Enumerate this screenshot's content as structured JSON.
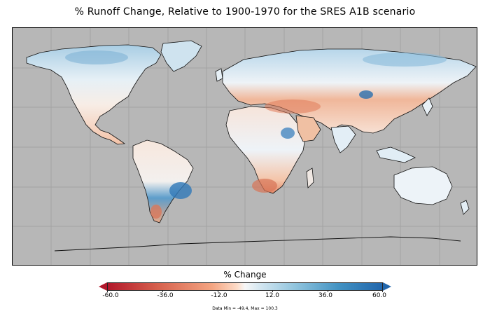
{
  "title": "% Runoff Change, Relative to 1900-1970 for the SRES A1B scenario",
  "colorbar": {
    "label": "% Change",
    "ticks": [
      "-60.0",
      "-36.0",
      "-12.0",
      "12.0",
      "36.0",
      "60.0"
    ],
    "range": [
      -60,
      60
    ],
    "extend": "both",
    "colors": [
      "#b2182b",
      "#d6604d",
      "#f4a582",
      "#fddbc7",
      "#f7f7f7",
      "#d1e5f0",
      "#92c5de",
      "#4393c3",
      "#2166ac"
    ]
  },
  "stats_text": "Data Min = -49.4, Max = 100.3",
  "map": {
    "ocean_color": "#b7b7b7",
    "gridlines": true
  }
}
